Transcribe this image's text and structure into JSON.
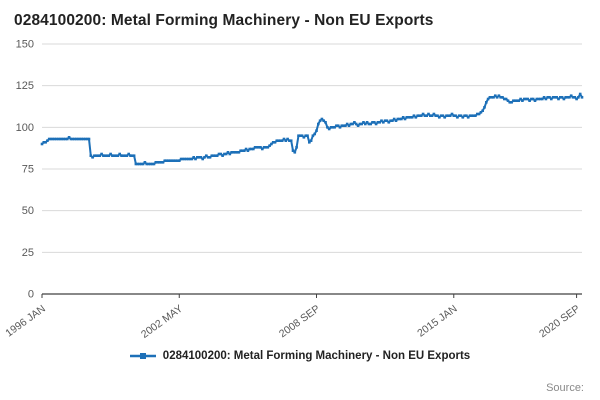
{
  "page": {
    "title": "0284100200: Metal Forming Machinery - Non EU Exports",
    "source_label": "Source:"
  },
  "chart_data": {
    "type": "line",
    "title": "0284100200: Metal Forming Machinery - Non EU Exports",
    "legend": [
      "0284100200: Metal Forming Machinery - Non EU Exports"
    ],
    "legend_position": "bottom",
    "color": "#1d70b8",
    "grid": true,
    "gridline_color": "#d9d9d9",
    "axis_color": "#404040",
    "tick_label_color": "#595959",
    "ylim": [
      0,
      150
    ],
    "yticks": [
      0,
      25,
      50,
      75,
      100,
      125,
      150
    ],
    "x_unit": "month",
    "x_start": "1996 JAN",
    "x_end": "2020 DEC",
    "xticks": [
      {
        "index": 0,
        "label": "1996 JAN"
      },
      {
        "index": 76,
        "label": "2002 MAY"
      },
      {
        "index": 152,
        "label": "2008 SEP"
      },
      {
        "index": 228,
        "label": "2015 JAN"
      },
      {
        "index": 296,
        "label": "2020 SEP"
      }
    ],
    "values": [
      90,
      91,
      91,
      92,
      93,
      93,
      93,
      93,
      93,
      93,
      93,
      93,
      93,
      93,
      93,
      94,
      93,
      93,
      93,
      93,
      93,
      93,
      93,
      93,
      93,
      93,
      93,
      83,
      82,
      83,
      83,
      83,
      83,
      84,
      83,
      83,
      83,
      83,
      84,
      83,
      83,
      83,
      83,
      84,
      83,
      83,
      83,
      83,
      84,
      83,
      83,
      83,
      78,
      78,
      78,
      78,
      78,
      79,
      78,
      78,
      78,
      78,
      78,
      79,
      79,
      79,
      79,
      79,
      80,
      80,
      80,
      80,
      80,
      80,
      80,
      80,
      80,
      81,
      81,
      81,
      81,
      81,
      81,
      81,
      82,
      81,
      82,
      82,
      82,
      81,
      82,
      83,
      82,
      82,
      83,
      83,
      83,
      83,
      84,
      84,
      83,
      84,
      84,
      85,
      84,
      85,
      85,
      85,
      85,
      85,
      86,
      86,
      86,
      87,
      86,
      87,
      87,
      87,
      88,
      88,
      88,
      88,
      87,
      88,
      88,
      88,
      89,
      90,
      91,
      91,
      92,
      92,
      92,
      92,
      93,
      92,
      93,
      92,
      92,
      86,
      85,
      88,
      95,
      95,
      95,
      94,
      95,
      95,
      91,
      92,
      95,
      96,
      98,
      102,
      104,
      105,
      104,
      103,
      100,
      99,
      100,
      100,
      100,
      101,
      101,
      100,
      101,
      101,
      101,
      102,
      101,
      102,
      102,
      103,
      102,
      101,
      102,
      102,
      103,
      102,
      103,
      102,
      102,
      103,
      103,
      102,
      103,
      103,
      104,
      103,
      104,
      104,
      103,
      104,
      104,
      105,
      104,
      105,
      105,
      105,
      106,
      105,
      106,
      106,
      106,
      106,
      107,
      106,
      107,
      107,
      107,
      108,
      107,
      107,
      108,
      107,
      107,
      108,
      107,
      107,
      106,
      107,
      107,
      106,
      107,
      107,
      107,
      108,
      107,
      107,
      106,
      107,
      107,
      106,
      107,
      107,
      106,
      107,
      107,
      107,
      107,
      108,
      108,
      109,
      110,
      112,
      115,
      117,
      118,
      118,
      118,
      119,
      118,
      119,
      118,
      118,
      117,
      117,
      116,
      115,
      115,
      116,
      116,
      116,
      116,
      117,
      116,
      117,
      117,
      117,
      116,
      117,
      117,
      116,
      117,
      117,
      117,
      117,
      118,
      117,
      118,
      118,
      117,
      118,
      118,
      118,
      117,
      118,
      118,
      117,
      118,
      118,
      118,
      119,
      118,
      118,
      117,
      118,
      120,
      118
    ]
  }
}
